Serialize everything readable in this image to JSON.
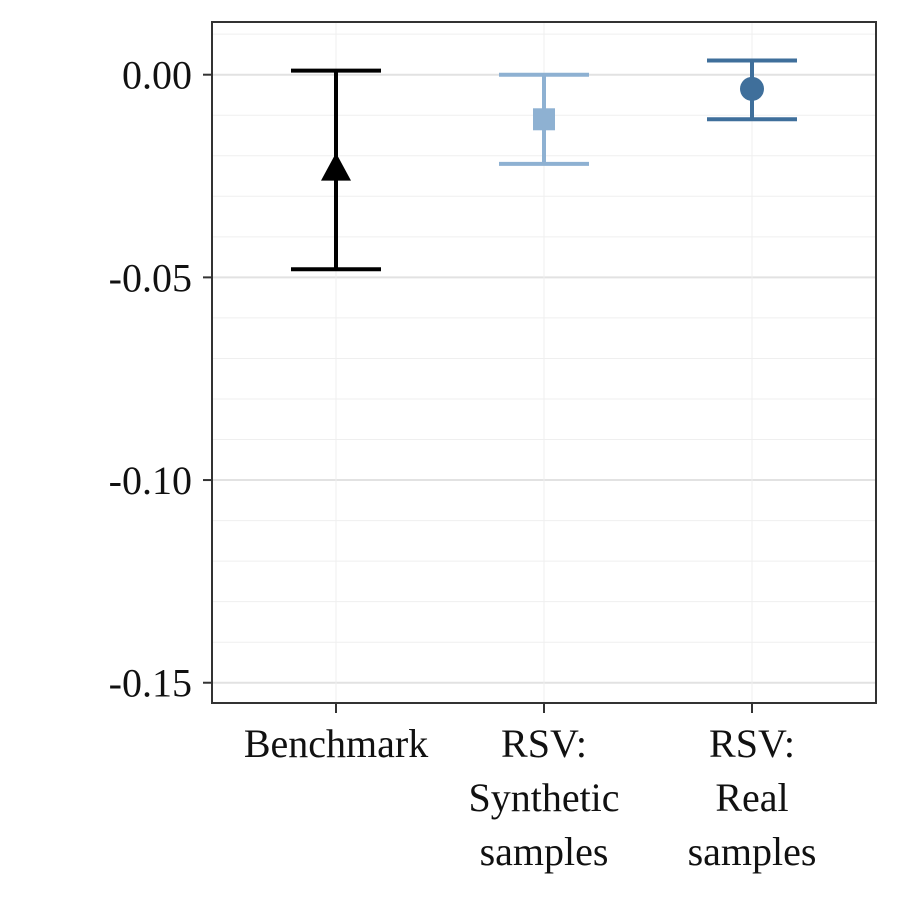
{
  "chart_data": {
    "type": "scatter",
    "title": "",
    "xlabel": "",
    "ylabel": "",
    "ylim": [
      -0.155,
      0.013
    ],
    "y_ticks": [
      0.0,
      -0.05,
      -0.1,
      -0.15
    ],
    "y_tick_labels": [
      "0.00",
      "-0.05",
      "-0.10",
      "-0.15"
    ],
    "grid": true,
    "legend": "none",
    "categories": [
      {
        "lines": [
          "Benchmark"
        ]
      },
      {
        "lines": [
          "RSV:",
          "Synthetic",
          "samples"
        ]
      },
      {
        "lines": [
          "RSV:",
          "Real",
          "samples"
        ]
      }
    ],
    "points": [
      {
        "estimate": -0.023,
        "lower": -0.048,
        "upper": 0.001,
        "color": "#000000",
        "marker": "triangle"
      },
      {
        "estimate": -0.011,
        "lower": -0.022,
        "upper": 0.0,
        "color": "#8EB1D2",
        "marker": "square"
      },
      {
        "estimate": -0.0035,
        "lower": -0.011,
        "upper": 0.0035,
        "color": "#3F6F9B",
        "marker": "circle"
      }
    ]
  }
}
